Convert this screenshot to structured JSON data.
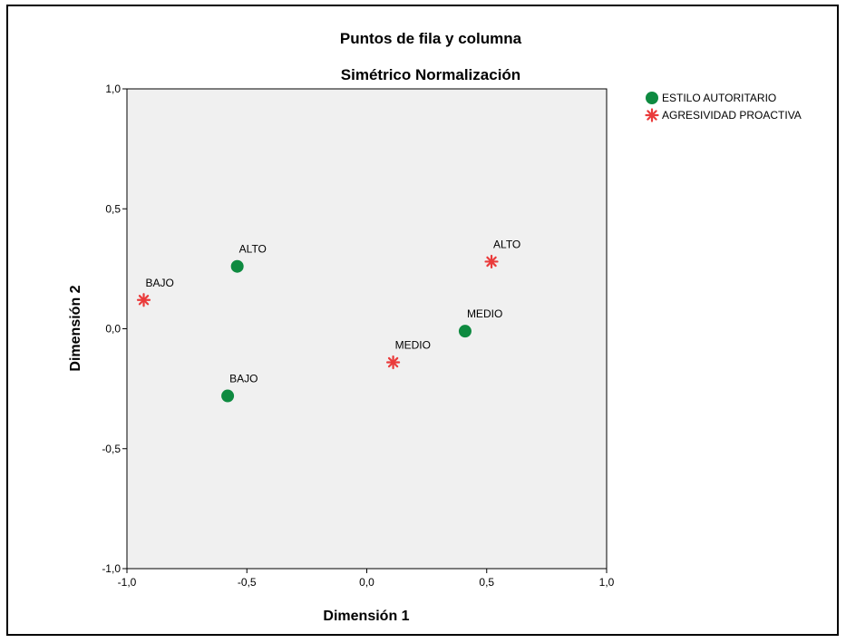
{
  "chart_data": {
    "type": "scatter",
    "title": "Puntos de fila y columna",
    "subtitle": "Simétrico Normalización",
    "xlabel": "Dimensión 1",
    "ylabel": "Dimensión 2",
    "xlim": [
      -1.0,
      1.0
    ],
    "ylim": [
      -1.0,
      1.0
    ],
    "xticks": [
      "-1,0",
      "-0,5",
      "0,0",
      "0,5",
      "1,0"
    ],
    "yticks": [
      "1,0",
      "0,5",
      "0,0",
      "-0,5",
      "-1,0"
    ],
    "xtick_values": [
      -1.0,
      -0.5,
      0.0,
      0.5,
      1.0
    ],
    "ytick_values": [
      1.0,
      0.5,
      0.0,
      -0.5,
      -1.0
    ],
    "grid": false,
    "legend": "right",
    "plot_background": "#f0f0f0",
    "series": [
      {
        "name": "ESTILO AUTORITARIO",
        "marker": "circle",
        "color": "#0e8a40",
        "points": [
          {
            "label": "ALTO",
            "x": -0.54,
            "y": 0.26
          },
          {
            "label": "BAJO",
            "x": -0.58,
            "y": -0.28
          },
          {
            "label": "MEDIO",
            "x": 0.41,
            "y": -0.01
          }
        ]
      },
      {
        "name": "AGRESIVIDAD PROACTIVA",
        "marker": "asterisk",
        "color": "#ea3b3b",
        "points": [
          {
            "label": "BAJO",
            "x": -0.93,
            "y": 0.12
          },
          {
            "label": "MEDIO",
            "x": 0.11,
            "y": -0.14
          },
          {
            "label": "ALTO",
            "x": 0.52,
            "y": 0.28
          }
        ]
      }
    ]
  }
}
